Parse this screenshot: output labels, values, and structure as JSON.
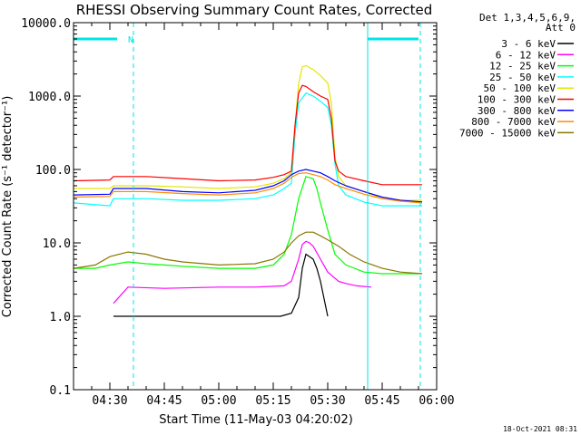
{
  "chart_data": {
    "type": "line",
    "title": "RHESSI Observing Summary Count Rates, Corrected",
    "xlabel": "Start Time (11-May-03 04:20:02)",
    "ylabel": "Corrected Count Rate (s⁻¹ detector⁻¹)",
    "y_scale": "log",
    "ylim": [
      0.1,
      10000
    ],
    "x_range": [
      "04:20",
      "06:00"
    ],
    "x_ticks": [
      "04:30",
      "04:45",
      "05:00",
      "05:15",
      "05:30",
      "05:45",
      "06:00"
    ],
    "y_ticks": [
      "0.1",
      "1.0",
      "10.0",
      "100.0",
      "1000.0",
      "10000.0"
    ],
    "legend_header": [
      "Det 1,3,4,5,6,9,",
      "Att 0"
    ],
    "legend_position": "top-right, outside plot",
    "footer": "18-Oct-2021 08:31",
    "annotations": [
      {
        "type": "horizontal-bar",
        "from": "04:20",
        "to": "04:32",
        "y": 6000,
        "color": "#00e5e5"
      },
      {
        "type": "label",
        "text": "N",
        "x": "04:35",
        "y": 6000,
        "color": "#00e5e5"
      },
      {
        "type": "vertical-line-dashed",
        "x": "04:36.5",
        "color": "#00e5e5"
      },
      {
        "type": "vertical-line-solid",
        "x": "05:41",
        "color": "#00e5e5"
      },
      {
        "type": "horizontal-bar",
        "from": "05:41",
        "to": "05:55",
        "y": 6000,
        "color": "#00e5e5"
      },
      {
        "type": "vertical-line-dashed",
        "x": "05:55.5",
        "color": "#00e5e5"
      }
    ],
    "series": [
      {
        "name": "3 - 6 keV",
        "color": "#000000",
        "x": [
          "04:31",
          "04:40",
          "05:00",
          "05:17",
          "05:20",
          "05:22",
          "05:23",
          "05:24",
          "05:25",
          "05:26",
          "05:27",
          "05:28",
          "05:30"
        ],
        "y": [
          1.0,
          1.0,
          1.0,
          1.0,
          1.1,
          1.8,
          4.5,
          7.0,
          6.5,
          6.0,
          4.5,
          3.0,
          1.0
        ]
      },
      {
        "name": "6 - 12 keV",
        "color": "#ff00ff",
        "x": [
          "04:31",
          "04:35",
          "04:45",
          "05:00",
          "05:10",
          "05:18",
          "05:20",
          "05:22",
          "05:23",
          "05:24",
          "05:25",
          "05:26",
          "05:28",
          "05:30",
          "05:33",
          "05:35",
          "05:38",
          "05:42"
        ],
        "y": [
          1.5,
          2.5,
          2.4,
          2.5,
          2.5,
          2.6,
          3.0,
          6.0,
          9.5,
          10.5,
          10.0,
          9.0,
          6.0,
          4.0,
          3.0,
          2.8,
          2.6,
          2.5
        ]
      },
      {
        "name": "12 - 25 keV",
        "color": "#00ff00",
        "x": [
          "04:20",
          "04:26",
          "04:30",
          "04:35",
          "04:40",
          "04:45",
          "04:50",
          "05:00",
          "05:10",
          "05:15",
          "05:18",
          "05:20",
          "05:22",
          "05:24",
          "05:26",
          "05:27",
          "05:28",
          "05:30",
          "05:32",
          "05:35",
          "05:40",
          "05:45",
          "05:50",
          "05:56"
        ],
        "y": [
          4.5,
          4.5,
          5.0,
          5.5,
          5.2,
          5.0,
          4.8,
          4.5,
          4.5,
          5.0,
          7.0,
          13.0,
          40.0,
          80.0,
          75.0,
          55.0,
          35.0,
          15.0,
          7.0,
          5.0,
          4.0,
          3.8,
          3.8,
          3.8
        ]
      },
      {
        "name": "25 - 50 keV",
        "color": "#00ffff",
        "x": [
          "04:20",
          "04:30",
          "04:31",
          "04:40",
          "04:50",
          "05:00",
          "05:10",
          "05:15",
          "05:18",
          "05:20",
          "05:21",
          "05:22",
          "05:24",
          "05:26",
          "05:28",
          "05:30",
          "05:31",
          "05:32",
          "05:33",
          "05:35",
          "05:40",
          "05:45",
          "05:50",
          "05:56"
        ],
        "y": [
          35.0,
          32.0,
          40.0,
          40.0,
          38.0,
          38.0,
          40.0,
          45.0,
          55.0,
          65.0,
          300.0,
          800.0,
          1100.0,
          1000.0,
          850.0,
          700.0,
          400.0,
          120.0,
          60.0,
          45.0,
          36.0,
          32.0,
          32.0,
          32.0
        ]
      },
      {
        "name": "50 - 100 keV",
        "color": "#e5e500",
        "x": [
          "04:20",
          "04:30",
          "04:31",
          "04:40",
          "04:50",
          "05:00",
          "05:10",
          "05:15",
          "05:18",
          "05:20",
          "05:21",
          "05:22",
          "05:23",
          "05:24",
          "05:26",
          "05:28",
          "05:30",
          "05:31",
          "05:32",
          "05:33",
          "05:35",
          "05:40",
          "05:45",
          "05:50",
          "05:56"
        ],
        "y": [
          55.0,
          55.0,
          60.0,
          60.0,
          58.0,
          55.0,
          58.0,
          65.0,
          75.0,
          90.0,
          400.0,
          1500.0,
          2500.0,
          2600.0,
          2300.0,
          1900.0,
          1500.0,
          800.0,
          150.0,
          80.0,
          60.0,
          50.0,
          40.0,
          38.0,
          38.0
        ]
      },
      {
        "name": "100 - 300 keV",
        "color": "#ff0000",
        "x": [
          "04:20",
          "04:30",
          "04:31",
          "04:40",
          "04:50",
          "05:00",
          "05:10",
          "05:15",
          "05:18",
          "05:20",
          "05:21",
          "05:22",
          "05:23",
          "05:24",
          "05:26",
          "05:28",
          "05:30",
          "05:31",
          "05:32",
          "05:33",
          "05:35",
          "05:40",
          "05:45",
          "05:50",
          "05:56"
        ],
        "y": [
          70.0,
          72.0,
          80.0,
          80.0,
          75.0,
          70.0,
          72.0,
          78.0,
          85.0,
          95.0,
          400.0,
          1100.0,
          1400.0,
          1350.0,
          1150.0,
          1000.0,
          900.0,
          500.0,
          130.0,
          95.0,
          80.0,
          70.0,
          62.0,
          62.0,
          62.0
        ]
      },
      {
        "name": "300 - 800 keV",
        "color": "#0000ff",
        "x": [
          "04:20",
          "04:30",
          "04:31",
          "04:40",
          "04:50",
          "05:00",
          "05:10",
          "05:15",
          "05:18",
          "05:20",
          "05:22",
          "05:24",
          "05:26",
          "05:28",
          "05:30",
          "05:32",
          "05:35",
          "05:40",
          "05:45",
          "05:50",
          "05:56"
        ],
        "y": [
          45.0,
          46.0,
          55.0,
          55.0,
          50.0,
          48.0,
          52.0,
          60.0,
          70.0,
          85.0,
          95.0,
          100.0,
          95.0,
          90.0,
          80.0,
          70.0,
          60.0,
          50.0,
          42.0,
          38.0,
          36.0
        ]
      },
      {
        "name": "800 - 7000 keV",
        "color": "#ff8c00",
        "x": [
          "04:20",
          "04:30",
          "04:31",
          "04:40",
          "04:50",
          "05:00",
          "05:10",
          "05:15",
          "05:18",
          "05:20",
          "05:22",
          "05:24",
          "05:26",
          "05:28",
          "05:30",
          "05:32",
          "05:35",
          "05:40",
          "05:45",
          "05:50",
          "05:56"
        ],
        "y": [
          42.0,
          43.0,
          50.0,
          50.0,
          47.0,
          45.0,
          48.0,
          55.0,
          65.0,
          78.0,
          88.0,
          90.0,
          85.0,
          80.0,
          72.0,
          62.0,
          55.0,
          46.0,
          40.0,
          37.0,
          35.0
        ]
      },
      {
        "name": "7000 - 15000 keV",
        "color": "#8b7500",
        "x": [
          "04:20",
          "04:26",
          "04:30",
          "04:35",
          "04:40",
          "04:45",
          "04:50",
          "05:00",
          "05:10",
          "05:15",
          "05:18",
          "05:20",
          "05:22",
          "05:24",
          "05:26",
          "05:28",
          "05:30",
          "05:33",
          "05:36",
          "05:40",
          "05:45",
          "05:50",
          "05:56"
        ],
        "y": [
          4.5,
          5.0,
          6.5,
          7.5,
          7.0,
          6.0,
          5.5,
          5.0,
          5.2,
          6.0,
          7.5,
          10.0,
          12.5,
          14.0,
          14.0,
          12.5,
          11.0,
          9.0,
          7.0,
          5.5,
          4.5,
          4.0,
          3.8
        ]
      }
    ]
  }
}
